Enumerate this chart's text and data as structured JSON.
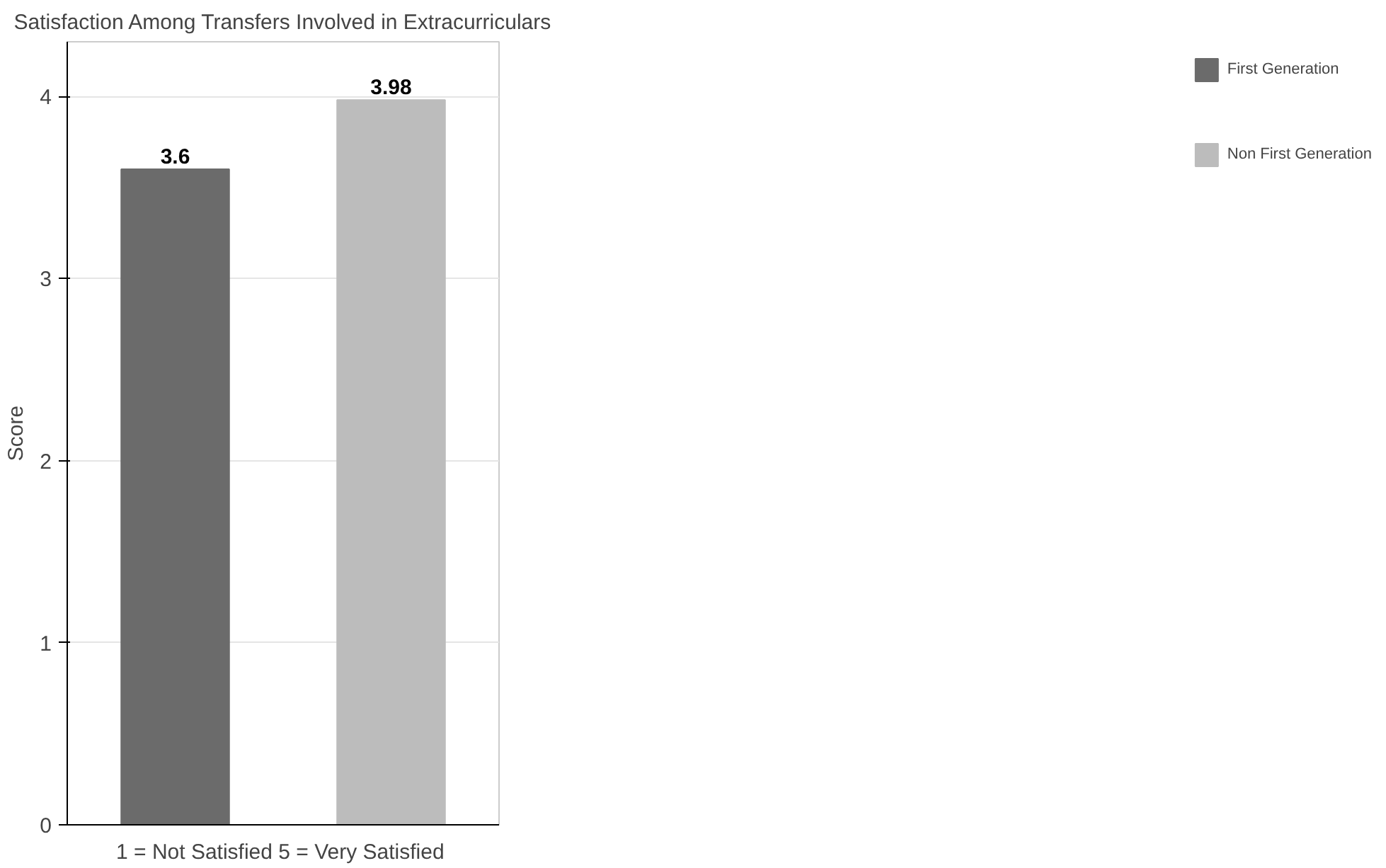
{
  "chart_data": {
    "type": "bar",
    "title": "Satisfaction Among Transfers Involved in Extracurriculars",
    "xlabel": "1 = Not Satisfied  5 = Very Satisfied",
    "ylabel": "Score",
    "categories": [
      null,
      null
    ],
    "series": [
      {
        "name": "First Generation",
        "color": "#6b6b6b",
        "values": [
          3.6,
          null
        ]
      },
      {
        "name": "Non First Generation",
        "color": "#bcbcbc",
        "values": [
          null,
          3.98
        ]
      }
    ],
    "ylim": [
      0,
      4.3
    ],
    "yticks": [
      0,
      1,
      2,
      3,
      4
    ],
    "grid": "y",
    "legend": "right",
    "data_labels": true
  }
}
